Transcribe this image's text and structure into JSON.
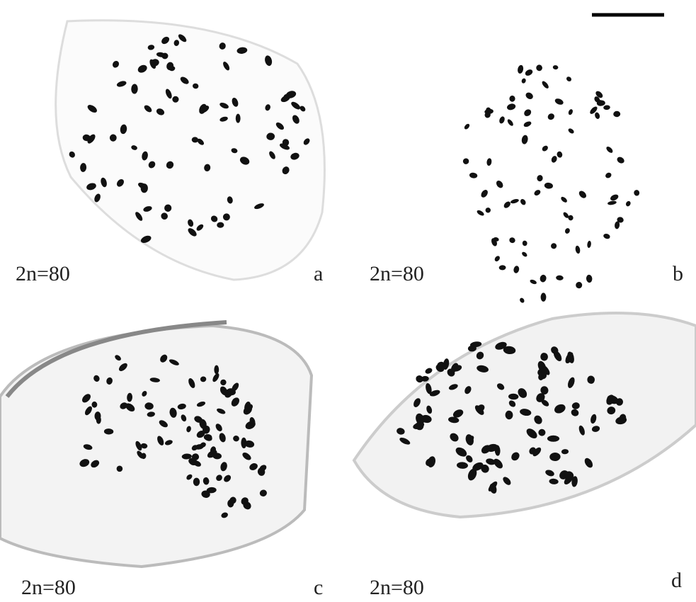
{
  "panels": [
    {
      "label": "a",
      "caption": "2n=80"
    },
    {
      "label": "b",
      "caption": "2n=80"
    },
    {
      "label": "c",
      "caption": "2n=80"
    },
    {
      "label": "d",
      "caption": "2n=80"
    }
  ]
}
